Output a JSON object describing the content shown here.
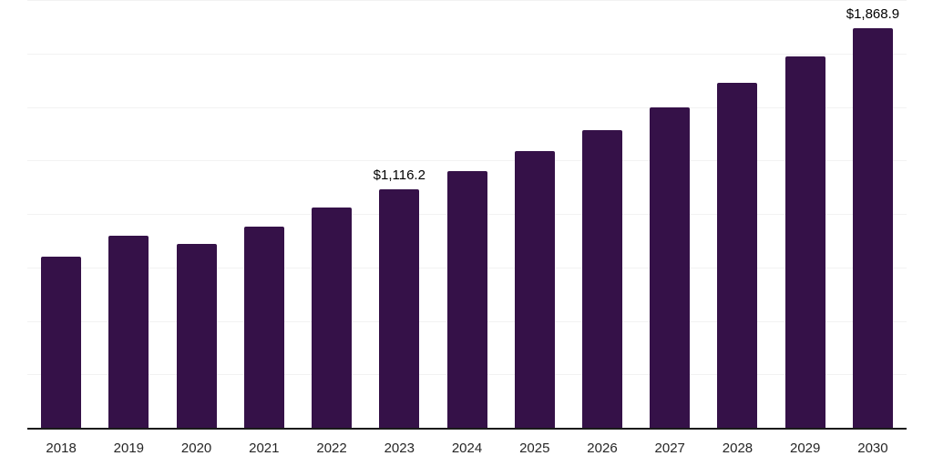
{
  "page": {
    "background": "#ffffff"
  },
  "chart_data": {
    "type": "bar",
    "title": "",
    "xlabel": "",
    "ylabel": "",
    "categories": [
      "2018",
      "2019",
      "2020",
      "2021",
      "2022",
      "2023",
      "2024",
      "2025",
      "2026",
      "2027",
      "2028",
      "2029",
      "2030"
    ],
    "values": [
      800.0,
      897.7,
      859.5,
      941.0,
      1028.4,
      1116.2,
      1201.5,
      1293.3,
      1392.1,
      1498.5,
      1613.0,
      1736.2,
      1868.9
    ],
    "data_labels": [
      "",
      "",
      "",
      "",
      "",
      "$1,116.2",
      "",
      "",
      "",
      "",
      "",
      "",
      "$1,868.9"
    ],
    "ylim": [
      0,
      2000
    ],
    "gridline_step": 250,
    "grid": "horizontal-only",
    "y_axis_labels_visible": false,
    "legend": "none",
    "colors": {
      "bar": "#351148",
      "gridline": "#f2f2f2",
      "axis": "#1a1a1a",
      "data_label": "#000000",
      "tick_label": "#262626",
      "background": "#ffffff"
    }
  }
}
